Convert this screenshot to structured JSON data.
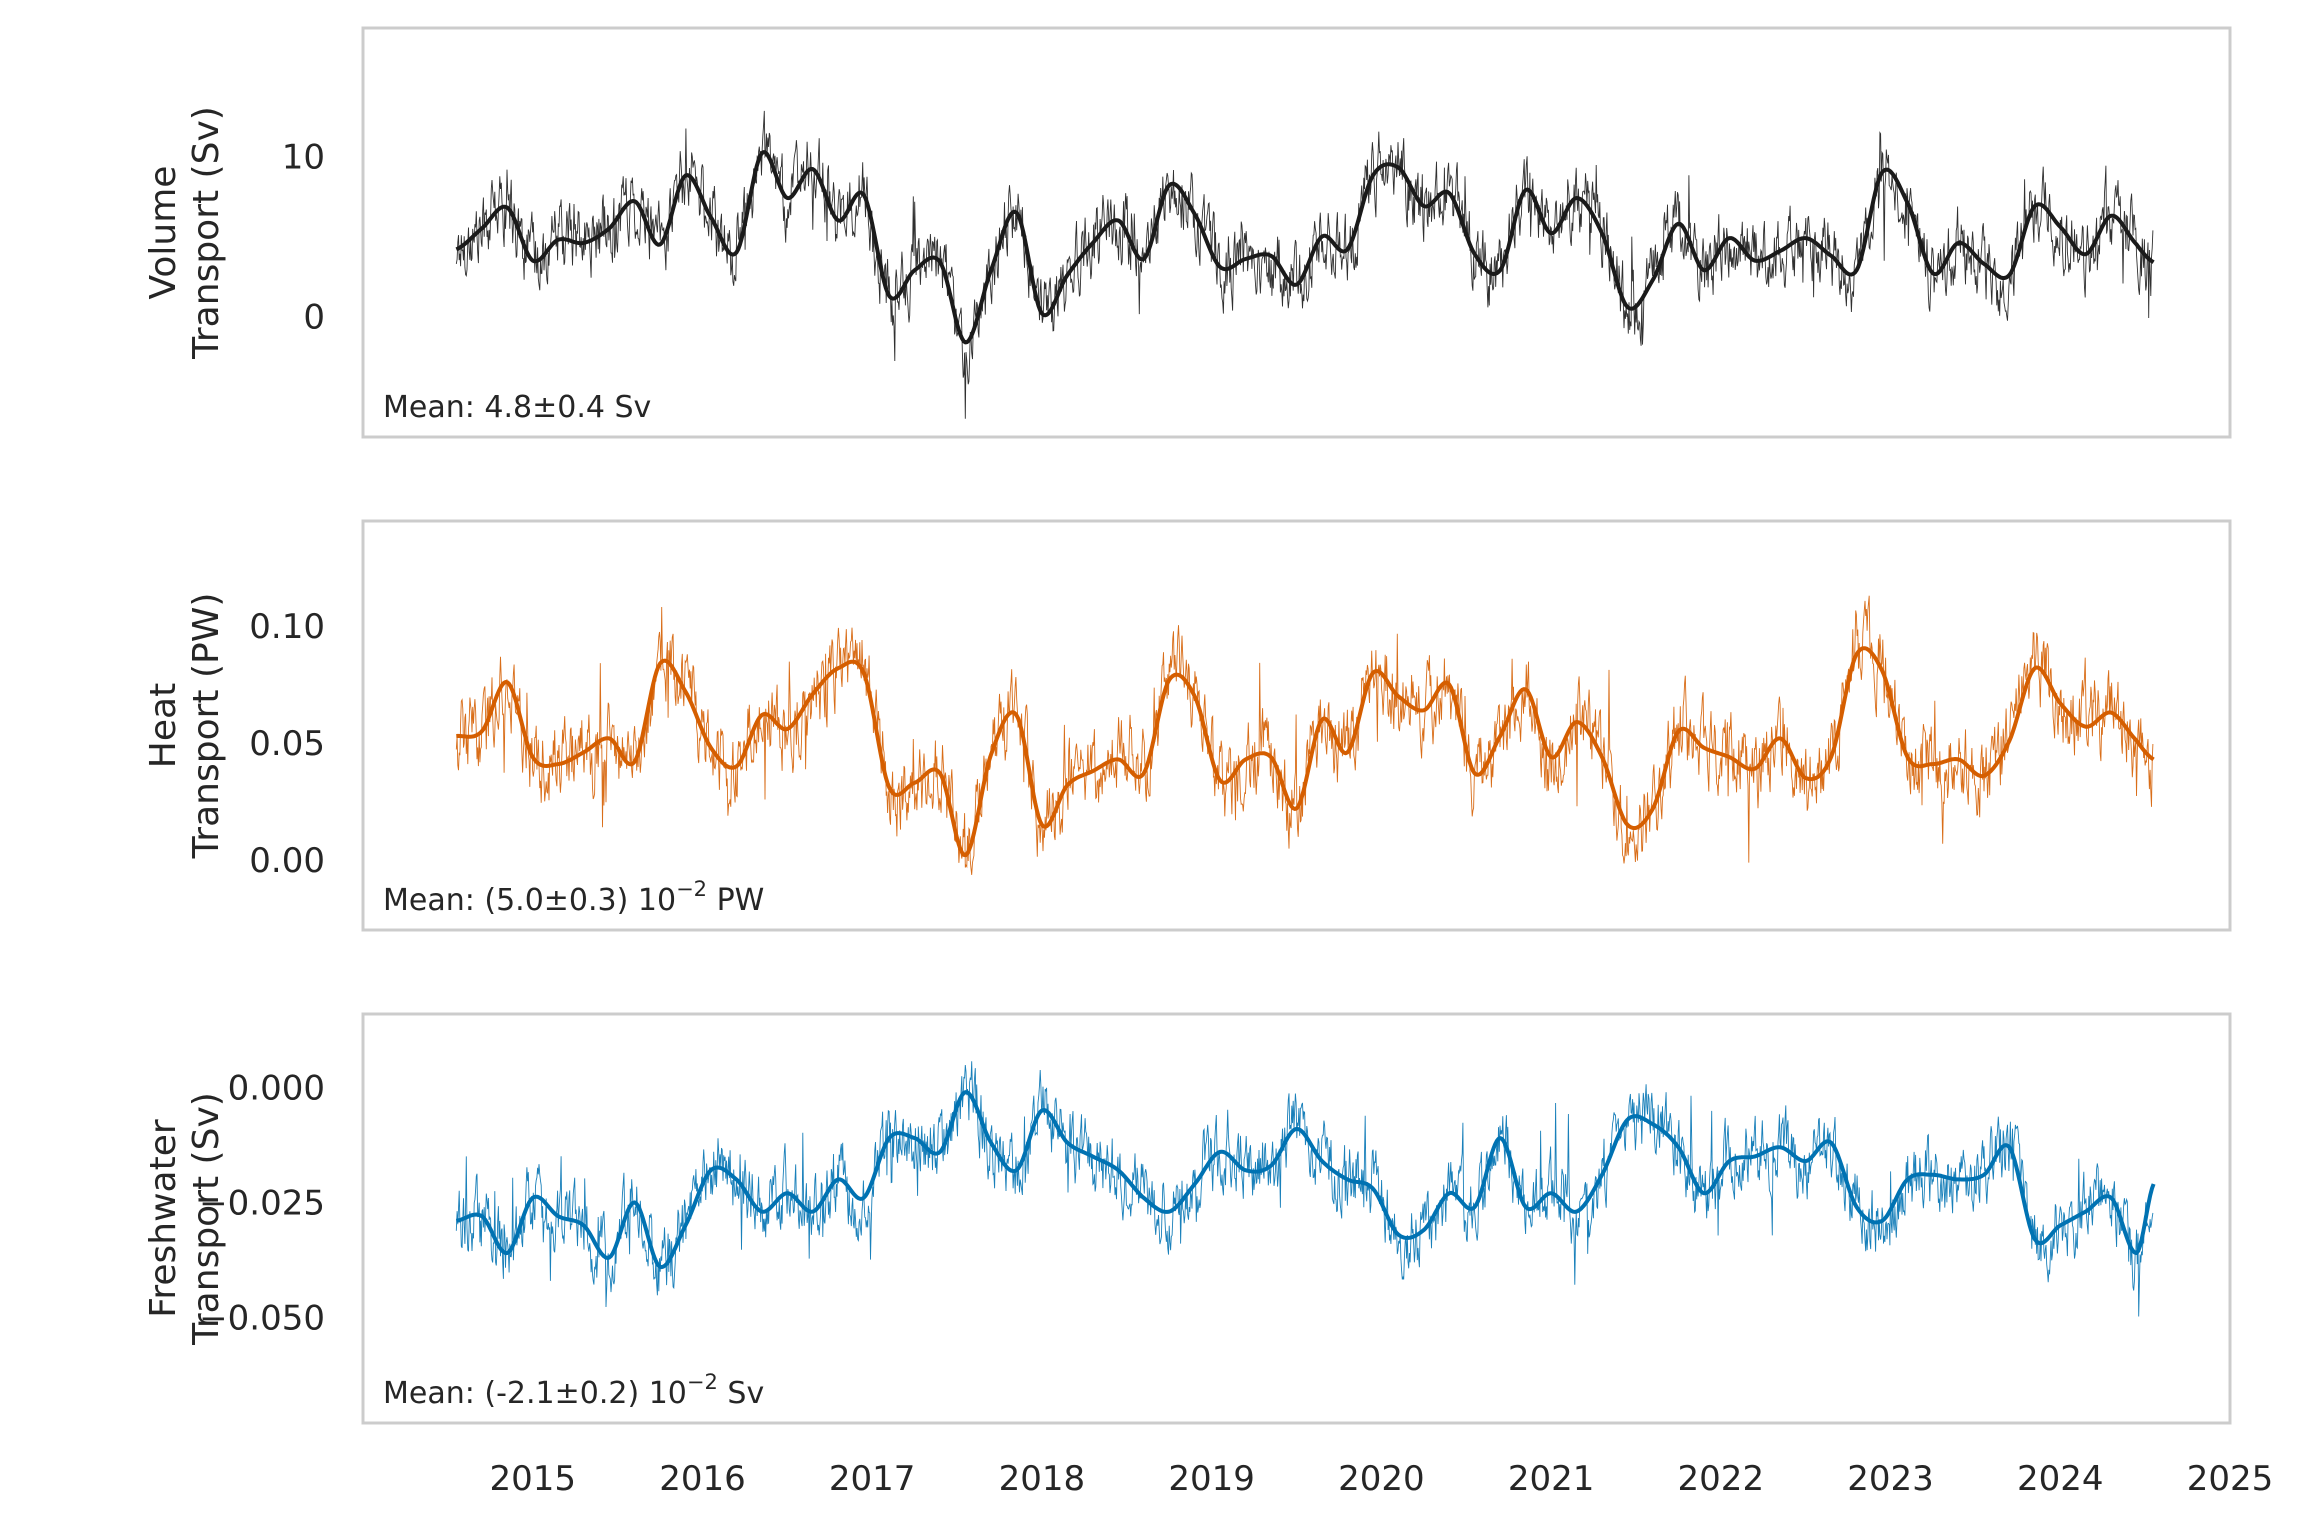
{
  "chart_data": [
    {
      "type": "line",
      "ylabel_lines": [
        "Volume",
        "Transport (Sv)"
      ],
      "ylim": [
        -7.5,
        18
      ],
      "yticks": [
        0,
        10
      ],
      "ytick_labels": [
        "0",
        "10"
      ],
      "xlim": [
        2014.0,
        2025.0
      ],
      "annotation": {
        "text": "Mean: 4.8±0.4 Sv"
      },
      "color": "#1a1a1a",
      "noise_amplitude": 3.2,
      "series": [
        {
          "smooth_x": [
            2014.55,
            2014.7,
            2014.85,
            2015.0,
            2015.15,
            2015.3,
            2015.45,
            2015.6,
            2015.75,
            2015.9,
            2016.05,
            2016.2,
            2016.35,
            2016.5,
            2016.65,
            2016.8,
            2016.95,
            2017.1,
            2017.25,
            2017.4,
            2017.55,
            2017.7,
            2017.85,
            2018.0,
            2018.15,
            2018.3,
            2018.45,
            2018.6,
            2018.75,
            2018.9,
            2019.05,
            2019.2,
            2019.35,
            2019.5,
            2019.65,
            2019.8,
            2019.95,
            2020.1,
            2020.25,
            2020.4,
            2020.55,
            2020.7,
            2020.85,
            2021.0,
            2021.15,
            2021.3,
            2021.45,
            2021.6,
            2021.75,
            2021.9,
            2022.05,
            2022.2,
            2022.35,
            2022.5,
            2022.65,
            2022.8,
            2022.95,
            2023.1,
            2023.25,
            2023.4,
            2023.55,
            2023.7,
            2023.85,
            2024.0,
            2024.15,
            2024.3,
            2024.45,
            2024.55
          ],
          "smooth_y": [
            4.2,
            5.5,
            6.8,
            3.5,
            4.8,
            4.6,
            5.5,
            7.2,
            4.5,
            8.8,
            6.2,
            4.0,
            10.2,
            7.4,
            9.2,
            6.0,
            7.6,
            1.3,
            2.9,
            3.4,
            -1.6,
            2.9,
            6.5,
            0.2,
            2.6,
            4.6,
            6.0,
            3.6,
            8.2,
            6.4,
            3.1,
            3.6,
            3.8,
            2.0,
            5.0,
            4.2,
            8.8,
            9.3,
            6.9,
            7.7,
            3.9,
            2.9,
            7.9,
            5.2,
            7.4,
            5.2,
            0.6,
            2.3,
            5.8,
            2.9,
            4.9,
            3.5,
            4.1,
            4.9,
            3.8,
            2.9,
            9.0,
            7.1,
            2.7,
            4.6,
            3.3,
            2.6,
            6.9,
            5.6,
            3.9,
            6.3,
            4.5,
            3.4
          ]
        }
      ]
    },
    {
      "type": "line",
      "ylabel_lines": [
        "Heat",
        "Transport (PW)"
      ],
      "ylim": [
        -0.03,
        0.145
      ],
      "yticks": [
        0.0,
        0.05,
        0.1
      ],
      "ytick_labels": [
        "0.00",
        "0.05",
        "0.10"
      ],
      "xlim": [
        2014.0,
        2025.0
      ],
      "annotation": {
        "text": "Mean: (5.0±0.3) 10",
        "superscript": "−2",
        "suffix": " PW"
      },
      "color": "#d55e00",
      "noise_amplitude": 0.024,
      "series": [
        {
          "smooth_x": [
            2014.55,
            2014.7,
            2014.85,
            2015.0,
            2015.15,
            2015.3,
            2015.45,
            2015.6,
            2015.75,
            2015.9,
            2016.05,
            2016.2,
            2016.35,
            2016.5,
            2016.65,
            2016.8,
            2016.95,
            2017.1,
            2017.25,
            2017.4,
            2017.55,
            2017.7,
            2017.85,
            2018.0,
            2018.15,
            2018.3,
            2018.45,
            2018.6,
            2018.75,
            2018.9,
            2019.05,
            2019.2,
            2019.35,
            2019.5,
            2019.65,
            2019.8,
            2019.95,
            2020.1,
            2020.25,
            2020.4,
            2020.55,
            2020.7,
            2020.85,
            2021.0,
            2021.15,
            2021.3,
            2021.45,
            2021.6,
            2021.75,
            2021.9,
            2022.05,
            2022.2,
            2022.35,
            2022.5,
            2022.65,
            2022.8,
            2022.95,
            2023.1,
            2023.25,
            2023.4,
            2023.55,
            2023.7,
            2023.85,
            2024.0,
            2024.15,
            2024.3,
            2024.45,
            2024.55
          ],
          "smooth_y": [
            0.053,
            0.055,
            0.076,
            0.044,
            0.041,
            0.046,
            0.052,
            0.042,
            0.084,
            0.072,
            0.048,
            0.04,
            0.062,
            0.056,
            0.071,
            0.082,
            0.08,
            0.031,
            0.033,
            0.037,
            0.002,
            0.045,
            0.062,
            0.015,
            0.032,
            0.038,
            0.043,
            0.037,
            0.077,
            0.07,
            0.034,
            0.043,
            0.044,
            0.022,
            0.06,
            0.046,
            0.08,
            0.07,
            0.064,
            0.075,
            0.037,
            0.053,
            0.073,
            0.044,
            0.059,
            0.044,
            0.015,
            0.022,
            0.055,
            0.048,
            0.044,
            0.039,
            0.052,
            0.035,
            0.044,
            0.088,
            0.081,
            0.044,
            0.041,
            0.043,
            0.036,
            0.051,
            0.082,
            0.067,
            0.057,
            0.063,
            0.051,
            0.043
          ]
        }
      ]
    },
    {
      "type": "line",
      "ylabel_lines": [
        "Freshwater",
        "Transport (Sv)"
      ],
      "ylim": [
        -0.073,
        0.016
      ],
      "yticks": [
        -0.05,
        -0.025,
        0.0
      ],
      "ytick_labels": [
        "−0.050",
        "−0.025",
        "0.000"
      ],
      "xlim": [
        2014.0,
        2025.0
      ],
      "annotation": {
        "text": "Mean: (-2.1±0.2) 10",
        "superscript": "−2",
        "suffix": " Sv"
      },
      "color": "#0072b2",
      "noise_amplitude": 0.011,
      "series": [
        {
          "smooth_x": [
            2014.55,
            2014.7,
            2014.85,
            2015.0,
            2015.15,
            2015.3,
            2015.45,
            2015.6,
            2015.75,
            2015.9,
            2016.05,
            2016.2,
            2016.35,
            2016.5,
            2016.65,
            2016.8,
            2016.95,
            2017.1,
            2017.25,
            2017.4,
            2017.55,
            2017.7,
            2017.85,
            2018.0,
            2018.15,
            2018.3,
            2018.45,
            2018.6,
            2018.75,
            2018.9,
            2019.05,
            2019.2,
            2019.35,
            2019.5,
            2019.65,
            2019.8,
            2019.95,
            2020.1,
            2020.25,
            2020.4,
            2020.55,
            2020.7,
            2020.85,
            2021.0,
            2021.15,
            2021.3,
            2021.45,
            2021.6,
            2021.75,
            2021.9,
            2022.05,
            2022.2,
            2022.35,
            2022.5,
            2022.65,
            2022.8,
            2022.95,
            2023.1,
            2023.25,
            2023.4,
            2023.55,
            2023.7,
            2023.85,
            2024.0,
            2024.15,
            2024.3,
            2024.45,
            2024.55
          ],
          "smooth_y": [
            -0.029,
            -0.028,
            -0.036,
            -0.024,
            -0.028,
            -0.03,
            -0.037,
            -0.025,
            -0.039,
            -0.03,
            -0.018,
            -0.02,
            -0.027,
            -0.023,
            -0.027,
            -0.02,
            -0.024,
            -0.011,
            -0.011,
            -0.014,
            -0.001,
            -0.012,
            -0.018,
            -0.005,
            -0.012,
            -0.015,
            -0.018,
            -0.024,
            -0.027,
            -0.021,
            -0.014,
            -0.018,
            -0.017,
            -0.009,
            -0.016,
            -0.02,
            -0.022,
            -0.032,
            -0.031,
            -0.023,
            -0.026,
            -0.011,
            -0.026,
            -0.023,
            -0.027,
            -0.019,
            -0.007,
            -0.008,
            -0.013,
            -0.023,
            -0.016,
            -0.015,
            -0.013,
            -0.016,
            -0.012,
            -0.026,
            -0.029,
            -0.02,
            -0.019,
            -0.02,
            -0.019,
            -0.013,
            -0.033,
            -0.03,
            -0.027,
            -0.024,
            -0.036,
            -0.021
          ]
        }
      ]
    }
  ],
  "xaxis": {
    "ticks": [
      2015,
      2016,
      2017,
      2018,
      2019,
      2020,
      2021,
      2022,
      2023,
      2024,
      2025
    ],
    "tick_labels": [
      "2015",
      "2016",
      "2017",
      "2018",
      "2019",
      "2020",
      "2021",
      "2022",
      "2023",
      "2024",
      "2025"
    ]
  },
  "grid": false
}
